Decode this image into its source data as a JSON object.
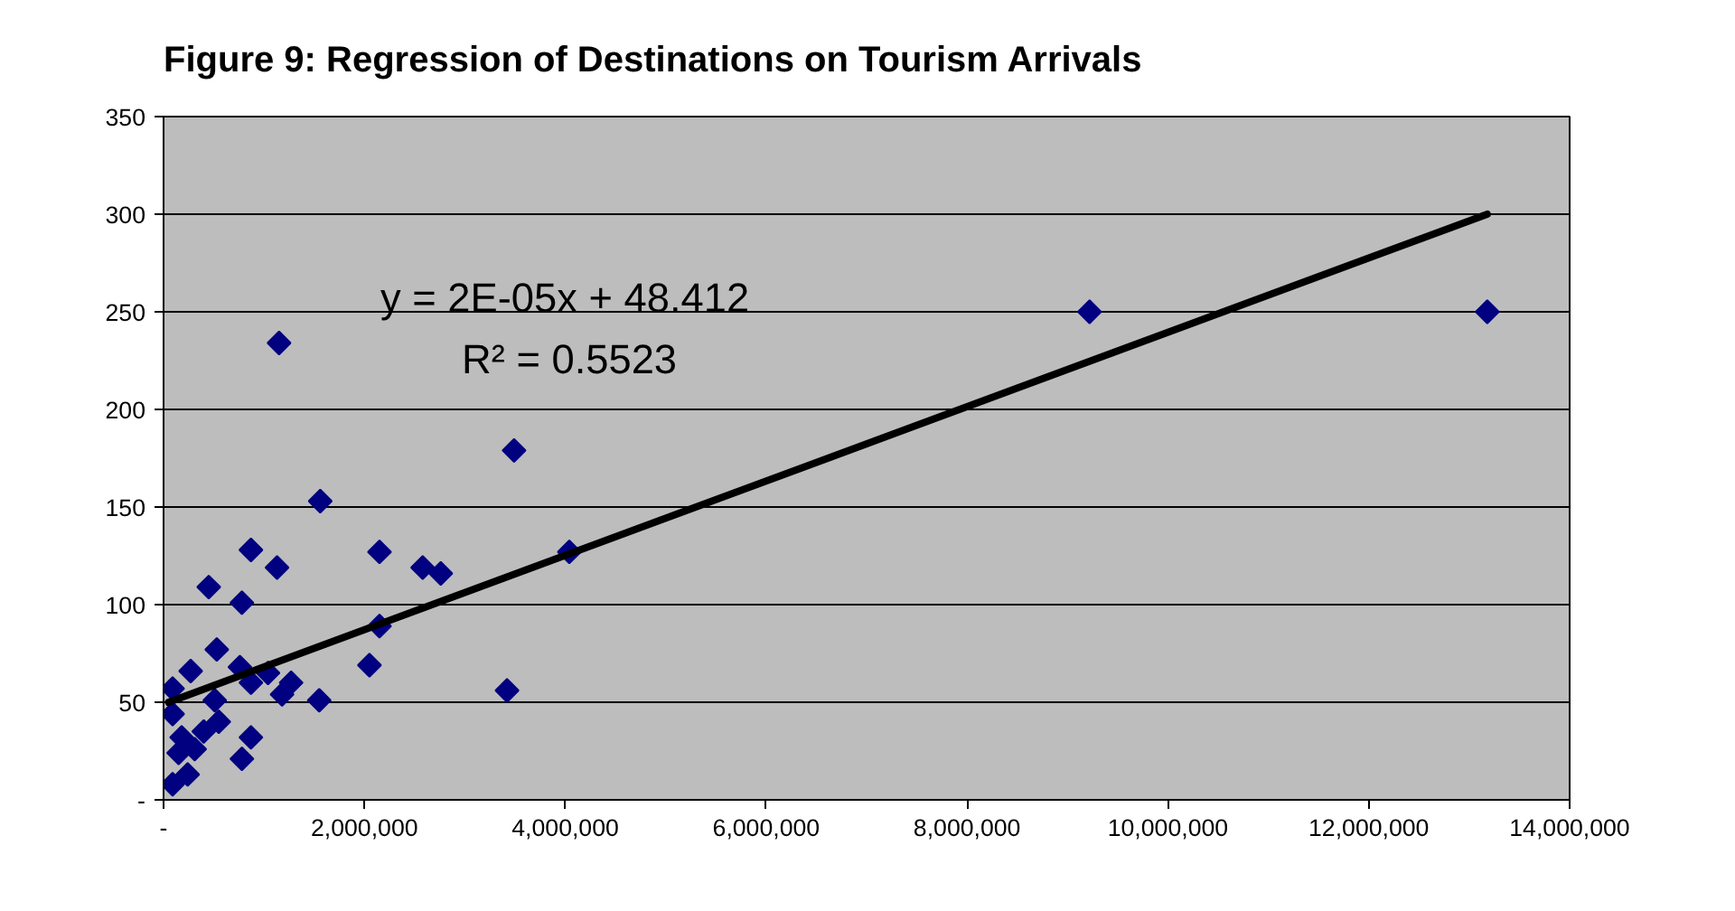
{
  "chart_data": {
    "type": "scatter",
    "title": "Figure 9: Regression of Destinations on Tourism Arrivals",
    "series": [
      {
        "color": "#000080",
        "marker": "diamond",
        "x": [
          90000,
          130000,
          150000,
          240000,
          90000,
          180000,
          310000,
          400000,
          550000,
          510000,
          270000,
          530000,
          450000,
          780000,
          870000,
          760000,
          870000,
          1040000,
          1270000,
          1180000,
          1550000,
          780000,
          870000,
          1130000,
          1150000,
          1560000,
          2150000,
          2580000,
          2760000,
          4040000,
          2150000,
          2050000,
          3420000,
          3490000,
          9220000,
          13180000,
          90000
        ],
        "values": [
          57,
          null,
          24,
          13,
          44,
          32,
          26,
          35,
          40,
          51,
          66,
          77,
          109,
          101,
          128,
          68,
          60,
          65,
          60,
          54,
          51,
          21,
          32,
          119,
          234,
          153,
          127,
          119,
          116,
          127,
          89,
          69,
          56,
          179,
          250,
          250,
          8
        ]
      },
      {
        "type": "line",
        "color": "#000000",
        "x": [
          50000,
          13180000
        ],
        "values": [
          50,
          300
        ]
      }
    ],
    "xlim": [
      0,
      14000000
    ],
    "xticks": [
      {
        "value": 0,
        "label": "-"
      },
      {
        "value": 2000000,
        "label": "2,000,000"
      },
      {
        "value": 4000000,
        "label": "4,000,000"
      },
      {
        "value": 6000000,
        "label": "6,000,000"
      },
      {
        "value": 8000000,
        "label": "8,000,000"
      },
      {
        "value": 10000000,
        "label": "10,000,000"
      },
      {
        "value": 12000000,
        "label": "12,000,000"
      },
      {
        "value": 14000000,
        "label": "14,000,000"
      }
    ],
    "ylim": [
      0,
      350
    ],
    "yticks": [
      {
        "value": 0,
        "label": "-"
      },
      50,
      100,
      150,
      200,
      250,
      300,
      350
    ],
    "grid": "y",
    "annotations": [
      "y = 2E-05x + 48.412",
      "R² = 0.5523"
    ]
  }
}
